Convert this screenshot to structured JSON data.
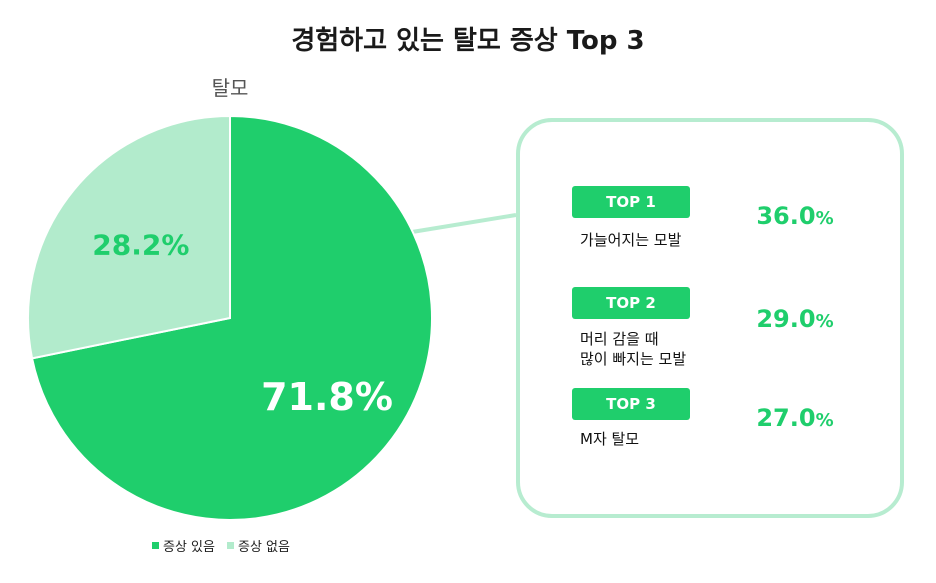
{
  "title": "경험하고 있는 탈모 증상 Top 3",
  "colors": {
    "primary": "#1fce6c",
    "light": "#b2ebcc",
    "box_border": "#b7ecd0"
  },
  "chart_data": [
    {
      "type": "pie",
      "title": "탈모",
      "slices": [
        {
          "label": "증상 있음",
          "value": 71.8,
          "display": "71.8%"
        },
        {
          "label": "증상 없음",
          "value": 28.2,
          "display": "28.2%"
        }
      ],
      "legend": "bottom"
    },
    {
      "type": "table",
      "rows": [
        {
          "rank": "TOP 1",
          "label": "가늘어지는 모발",
          "value": 36.0,
          "display": "36.0",
          "unit": "%"
        },
        {
          "rank": "TOP 2",
          "label_lines": [
            "머리 감을 때",
            "많이 빠지는 모발"
          ],
          "value": 29.0,
          "display": "29.0",
          "unit": "%"
        },
        {
          "rank": "TOP 3",
          "label": "M자 탈모",
          "value": 27.0,
          "display": "27.0",
          "unit": "%"
        }
      ]
    }
  ]
}
